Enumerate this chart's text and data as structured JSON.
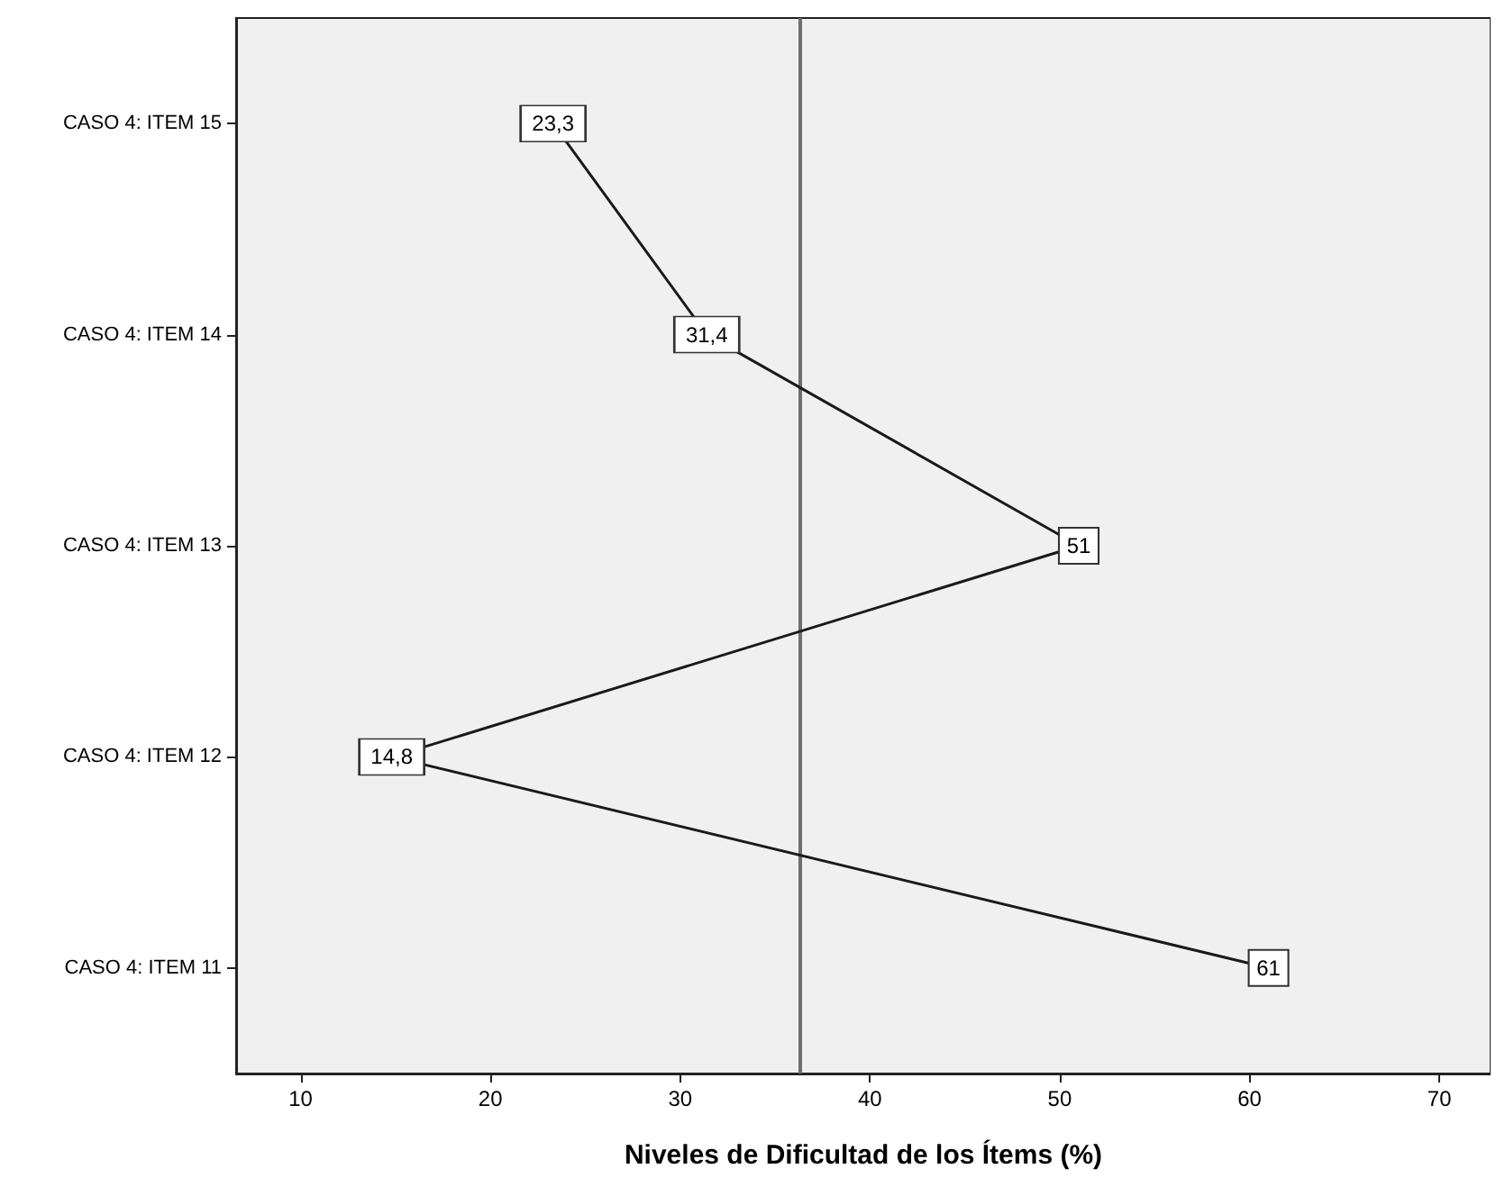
{
  "chart_data": {
    "type": "line",
    "orientation": "horizontal",
    "xlabel": "Niveles de Dificultad de los Ítems (%)",
    "categories": [
      "CASO 4: ITEM 15",
      "CASO 4: ITEM 14",
      "CASO 4: ITEM 13",
      "CASO 4: ITEM 12",
      "CASO 4: ITEM 11"
    ],
    "values": [
      23.3,
      31.4,
      51,
      14.8,
      61
    ],
    "value_labels": [
      "23,3",
      "31,4",
      "51",
      "14,8",
      "61"
    ],
    "color": "#1a1a1a",
    "marker": "square",
    "xlim": [
      6.6,
      72.7
    ],
    "xticks": [
      10,
      20,
      30,
      40,
      50,
      60,
      70
    ],
    "ref_lines": [
      {
        "axis": "x",
        "value": 36.3,
        "color": "#6e6e6e"
      }
    ]
  }
}
